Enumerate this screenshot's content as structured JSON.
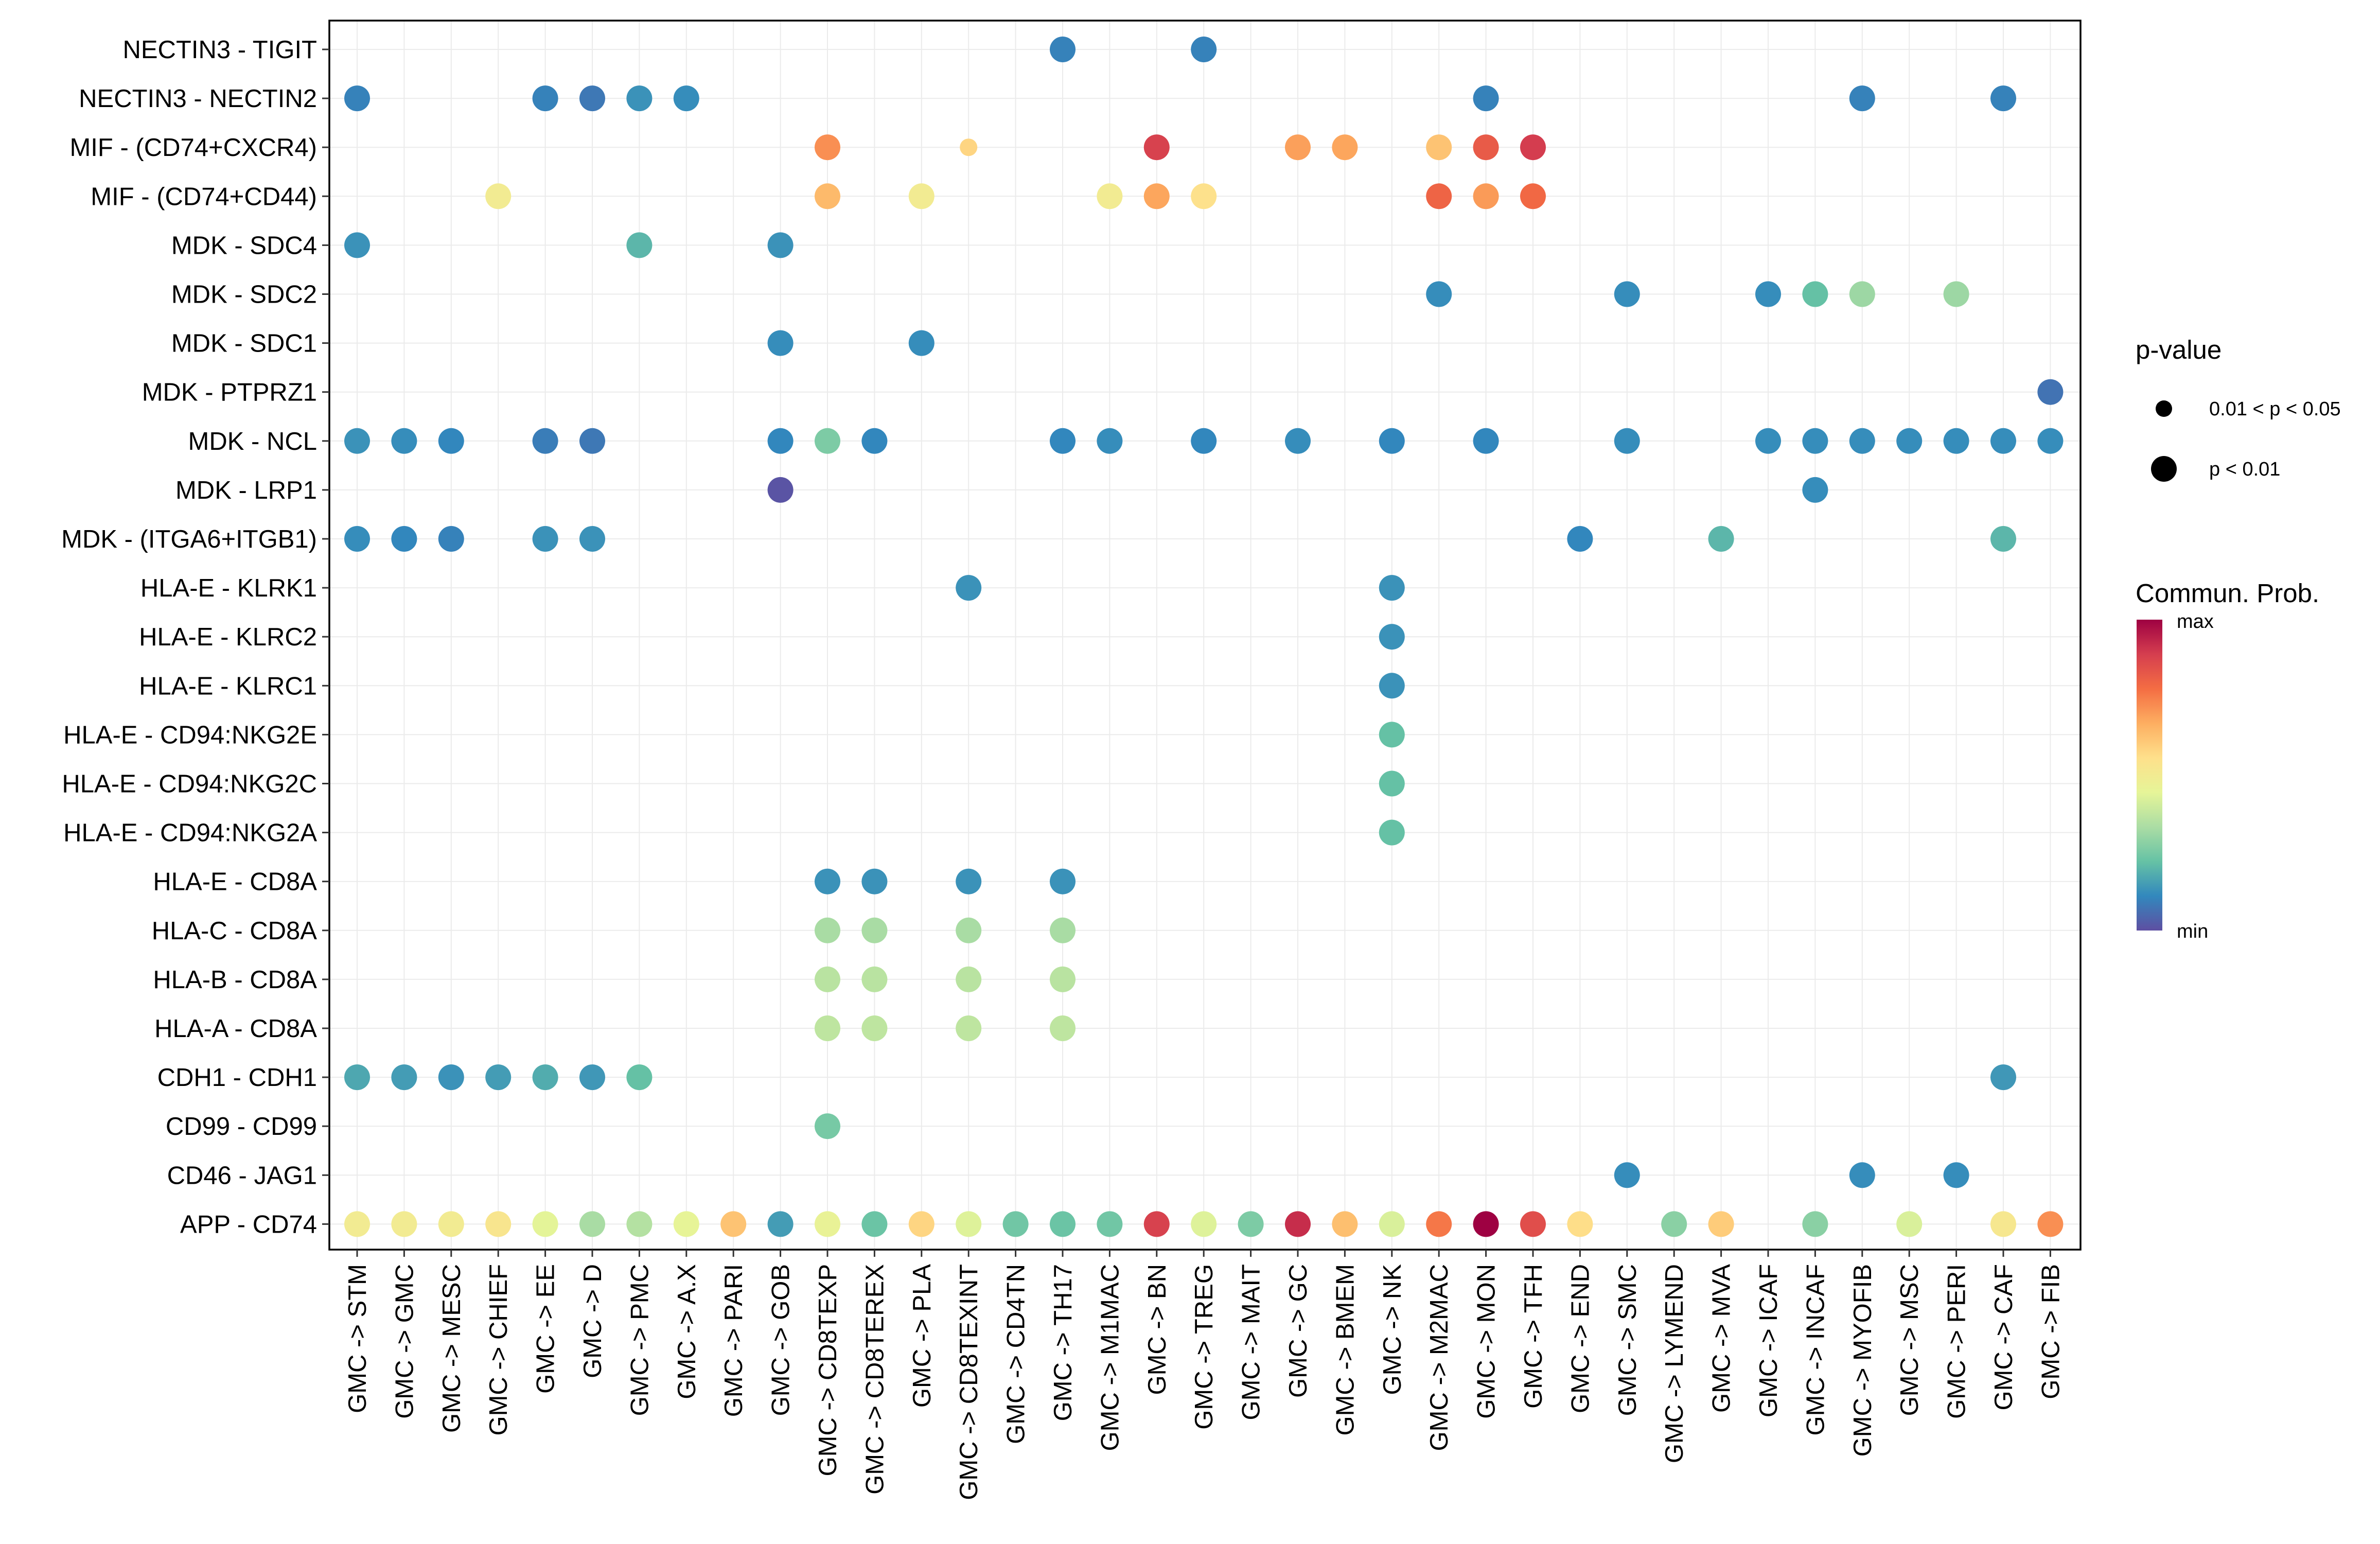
{
  "chart_data": {
    "type": "dot",
    "title": "",
    "xlabel": "",
    "ylabel": "",
    "color_scale": {
      "title": "Commun. Prob.",
      "max_label": "max",
      "min_label": "min",
      "range": [
        0,
        1
      ],
      "stops": [
        "#5e4fa2",
        "#3288bd",
        "#66c2a5",
        "#abdda4",
        "#e6f598",
        "#fee08b",
        "#fdae61",
        "#f46d43",
        "#d53e4f",
        "#9e0142"
      ]
    },
    "size_legend": {
      "title": "p-value",
      "entries": [
        {
          "label": "0.01 < p < 0.05",
          "size_class": "small"
        },
        {
          "label": "p < 0.01",
          "size_class": "large"
        }
      ]
    },
    "x_categories": [
      "GMC -> STM",
      "GMC -> GMC",
      "GMC -> MESC",
      "GMC -> CHIEF",
      "GMC -> EE",
      "GMC -> D",
      "GMC -> PMC",
      "GMC -> A.X",
      "GMC -> PARI",
      "GMC -> GOB",
      "GMC -> CD8TEXP",
      "GMC -> CD8TEREX",
      "GMC -> PLA",
      "GMC -> CD8TEXINT",
      "GMC -> CD4TN",
      "GMC -> TH17",
      "GMC -> M1MAC",
      "GMC -> BN",
      "GMC -> TREG",
      "GMC -> MAIT",
      "GMC -> GC",
      "GMC -> BMEM",
      "GMC -> NK",
      "GMC -> M2MAC",
      "GMC -> MON",
      "GMC -> TFH",
      "GMC -> END",
      "GMC -> SMC",
      "GMC -> LYMEND",
      "GMC -> MVA",
      "GMC -> ICAF",
      "GMC -> INCAF",
      "GMC -> MYOFIB",
      "GMC -> MSC",
      "GMC -> PERI",
      "GMC -> CAF",
      "GMC -> FIB"
    ],
    "y_categories": [
      "NECTIN3 - TIGIT",
      "NECTIN3 - NECTIN2",
      "MIF - (CD74+CXCR4)",
      "MIF - (CD74+CD44)",
      "MDK - SDC4",
      "MDK - SDC2",
      "MDK - SDC1",
      "MDK - PTPRZ1",
      "MDK - NCL",
      "MDK - LRP1",
      "MDK - (ITGA6+ITGB1)",
      "HLA-E - KLRK1",
      "HLA-E - KLRC2",
      "HLA-E - KLRC1",
      "HLA-E - CD94:NKG2E",
      "HLA-E - CD94:NKG2C",
      "HLA-E - CD94:NKG2A",
      "HLA-E - CD8A",
      "HLA-C - CD8A",
      "HLA-B - CD8A",
      "HLA-A - CD8A",
      "CDH1 - CDH1",
      "CD99 - CD99",
      "CD46 - JAG1",
      "APP - CD74"
    ],
    "points": [
      {
        "x": "GMC -> TH17",
        "y": "NECTIN3 - TIGIT",
        "prob": 0.1,
        "p": "p < 0.01"
      },
      {
        "x": "GMC -> TREG",
        "y": "NECTIN3 - TIGIT",
        "prob": 0.1,
        "p": "p < 0.01"
      },
      {
        "x": "GMC -> STM",
        "y": "NECTIN3 - NECTIN2",
        "prob": 0.1,
        "p": "p < 0.01"
      },
      {
        "x": "GMC -> EE",
        "y": "NECTIN3 - NECTIN2",
        "prob": 0.1,
        "p": "p < 0.01"
      },
      {
        "x": "GMC -> D",
        "y": "NECTIN3 - NECTIN2",
        "prob": 0.08,
        "p": "p < 0.01"
      },
      {
        "x": "GMC -> PMC",
        "y": "NECTIN3 - NECTIN2",
        "prob": 0.13,
        "p": "p < 0.01"
      },
      {
        "x": "GMC -> A.X",
        "y": "NECTIN3 - NECTIN2",
        "prob": 0.12,
        "p": "p < 0.01"
      },
      {
        "x": "GMC -> MON",
        "y": "NECTIN3 - NECTIN2",
        "prob": 0.1,
        "p": "p < 0.01"
      },
      {
        "x": "GMC -> MYOFIB",
        "y": "NECTIN3 - NECTIN2",
        "prob": 0.1,
        "p": "p < 0.01"
      },
      {
        "x": "GMC -> CAF",
        "y": "NECTIN3 - NECTIN2",
        "prob": 0.1,
        "p": "p < 0.01"
      },
      {
        "x": "GMC -> CD8TEXP",
        "y": "MIF - (CD74+CXCR4)",
        "prob": 0.72,
        "p": "p < 0.01"
      },
      {
        "x": "GMC -> CD8TEXINT",
        "y": "MIF - (CD74+CXCR4)",
        "prob": 0.58,
        "p": "0.01 < p < 0.05"
      },
      {
        "x": "GMC -> BN",
        "y": "MIF - (CD74+CXCR4)",
        "prob": 0.88,
        "p": "p < 0.01"
      },
      {
        "x": "GMC -> GC",
        "y": "MIF - (CD74+CXCR4)",
        "prob": 0.69,
        "p": "p < 0.01"
      },
      {
        "x": "GMC -> BMEM",
        "y": "MIF - (CD74+CXCR4)",
        "prob": 0.68,
        "p": "p < 0.01"
      },
      {
        "x": "GMC -> M2MAC",
        "y": "MIF - (CD74+CXCR4)",
        "prob": 0.62,
        "p": "p < 0.01"
      },
      {
        "x": "GMC -> MON",
        "y": "MIF - (CD74+CXCR4)",
        "prob": 0.82,
        "p": "p < 0.01"
      },
      {
        "x": "GMC -> TFH",
        "y": "MIF - (CD74+CXCR4)",
        "prob": 0.89,
        "p": "p < 0.01"
      },
      {
        "x": "GMC -> CHIEF",
        "y": "MIF - (CD74+CD44)",
        "prob": 0.5,
        "p": "p < 0.01"
      },
      {
        "x": "GMC -> CD8TEXP",
        "y": "MIF - (CD74+CD44)",
        "prob": 0.64,
        "p": "p < 0.01"
      },
      {
        "x": "GMC -> PLA",
        "y": "MIF - (CD74+CD44)",
        "prob": 0.5,
        "p": "p < 0.01"
      },
      {
        "x": "GMC -> M1MAC",
        "y": "MIF - (CD74+CD44)",
        "prob": 0.5,
        "p": "p < 0.01"
      },
      {
        "x": "GMC -> BN",
        "y": "MIF - (CD74+CD44)",
        "prob": 0.68,
        "p": "p < 0.01"
      },
      {
        "x": "GMC -> TREG",
        "y": "MIF - (CD74+CD44)",
        "prob": 0.55,
        "p": "p < 0.01"
      },
      {
        "x": "GMC -> M2MAC",
        "y": "MIF - (CD74+CD44)",
        "prob": 0.8,
        "p": "p < 0.01"
      },
      {
        "x": "GMC -> MON",
        "y": "MIF - (CD74+CD44)",
        "prob": 0.7,
        "p": "p < 0.01"
      },
      {
        "x": "GMC -> TFH",
        "y": "MIF - (CD74+CD44)",
        "prob": 0.79,
        "p": "p < 0.01"
      },
      {
        "x": "GMC -> STM",
        "y": "MDK - SDC4",
        "prob": 0.13,
        "p": "p < 0.01"
      },
      {
        "x": "GMC -> PMC",
        "y": "MDK - SDC4",
        "prob": 0.2,
        "p": "p < 0.01"
      },
      {
        "x": "GMC -> GOB",
        "y": "MDK - SDC4",
        "prob": 0.13,
        "p": "p < 0.01"
      },
      {
        "x": "GMC -> M2MAC",
        "y": "MDK - SDC2",
        "prob": 0.12,
        "p": "p < 0.01"
      },
      {
        "x": "GMC -> SMC",
        "y": "MDK - SDC2",
        "prob": 0.12,
        "p": "p < 0.01"
      },
      {
        "x": "GMC -> ICAF",
        "y": "MDK - SDC2",
        "prob": 0.12,
        "p": "p < 0.01"
      },
      {
        "x": "GMC -> INCAF",
        "y": "MDK - SDC2",
        "prob": 0.22,
        "p": "p < 0.01"
      },
      {
        "x": "GMC -> MYOFIB",
        "y": "MDK - SDC2",
        "prob": 0.31,
        "p": "p < 0.01"
      },
      {
        "x": "GMC -> PERI",
        "y": "MDK - SDC2",
        "prob": 0.31,
        "p": "p < 0.01"
      },
      {
        "x": "GMC -> GOB",
        "y": "MDK - SDC1",
        "prob": 0.12,
        "p": "p < 0.01"
      },
      {
        "x": "GMC -> PLA",
        "y": "MDK - SDC1",
        "prob": 0.12,
        "p": "p < 0.01"
      },
      {
        "x": "GMC -> FIB",
        "y": "MDK - PTPRZ1",
        "prob": 0.07,
        "p": "p < 0.01"
      },
      {
        "x": "GMC -> STM",
        "y": "MDK - NCL",
        "prob": 0.13,
        "p": "p < 0.01"
      },
      {
        "x": "GMC -> GMC",
        "y": "MDK - NCL",
        "prob": 0.12,
        "p": "p < 0.01"
      },
      {
        "x": "GMC -> MESC",
        "y": "MDK - NCL",
        "prob": 0.11,
        "p": "p < 0.01"
      },
      {
        "x": "GMC -> EE",
        "y": "MDK - NCL",
        "prob": 0.09,
        "p": "p < 0.01"
      },
      {
        "x": "GMC -> D",
        "y": "MDK - NCL",
        "prob": 0.08,
        "p": "p < 0.01"
      },
      {
        "x": "GMC -> GOB",
        "y": "MDK - NCL",
        "prob": 0.11,
        "p": "p < 0.01"
      },
      {
        "x": "GMC -> CD8TEXP",
        "y": "MDK - NCL",
        "prob": 0.26,
        "p": "p < 0.01"
      },
      {
        "x": "GMC -> CD8TEREX",
        "y": "MDK - NCL",
        "prob": 0.11,
        "p": "p < 0.01"
      },
      {
        "x": "GMC -> TH17",
        "y": "MDK - NCL",
        "prob": 0.11,
        "p": "p < 0.01"
      },
      {
        "x": "GMC -> M1MAC",
        "y": "MDK - NCL",
        "prob": 0.12,
        "p": "p < 0.01"
      },
      {
        "x": "GMC -> TREG",
        "y": "MDK - NCL",
        "prob": 0.11,
        "p": "p < 0.01"
      },
      {
        "x": "GMC -> GC",
        "y": "MDK - NCL",
        "prob": 0.12,
        "p": "p < 0.01"
      },
      {
        "x": "GMC -> NK",
        "y": "MDK - NCL",
        "prob": 0.11,
        "p": "p < 0.01"
      },
      {
        "x": "GMC -> MON",
        "y": "MDK - NCL",
        "prob": 0.11,
        "p": "p < 0.01"
      },
      {
        "x": "GMC -> SMC",
        "y": "MDK - NCL",
        "prob": 0.12,
        "p": "p < 0.01"
      },
      {
        "x": "GMC -> ICAF",
        "y": "MDK - NCL",
        "prob": 0.12,
        "p": "p < 0.01"
      },
      {
        "x": "GMC -> INCAF",
        "y": "MDK - NCL",
        "prob": 0.12,
        "p": "p < 0.01"
      },
      {
        "x": "GMC -> MYOFIB",
        "y": "MDK - NCL",
        "prob": 0.12,
        "p": "p < 0.01"
      },
      {
        "x": "GMC -> MSC",
        "y": "MDK - NCL",
        "prob": 0.12,
        "p": "p < 0.01"
      },
      {
        "x": "GMC -> PERI",
        "y": "MDK - NCL",
        "prob": 0.12,
        "p": "p < 0.01"
      },
      {
        "x": "GMC -> CAF",
        "y": "MDK - NCL",
        "prob": 0.12,
        "p": "p < 0.01"
      },
      {
        "x": "GMC -> FIB",
        "y": "MDK - NCL",
        "prob": 0.12,
        "p": "p < 0.01"
      },
      {
        "x": "GMC -> GOB",
        "y": "MDK - LRP1",
        "prob": 0.01,
        "p": "p < 0.01"
      },
      {
        "x": "GMC -> INCAF",
        "y": "MDK - LRP1",
        "prob": 0.12,
        "p": "p < 0.01"
      },
      {
        "x": "GMC -> STM",
        "y": "MDK - (ITGA6+ITGB1)",
        "prob": 0.12,
        "p": "p < 0.01"
      },
      {
        "x": "GMC -> GMC",
        "y": "MDK - (ITGA6+ITGB1)",
        "prob": 0.11,
        "p": "p < 0.01"
      },
      {
        "x": "GMC -> MESC",
        "y": "MDK - (ITGA6+ITGB1)",
        "prob": 0.1,
        "p": "p < 0.01"
      },
      {
        "x": "GMC -> EE",
        "y": "MDK - (ITGA6+ITGB1)",
        "prob": 0.13,
        "p": "p < 0.01"
      },
      {
        "x": "GMC -> D",
        "y": "MDK - (ITGA6+ITGB1)",
        "prob": 0.13,
        "p": "p < 0.01"
      },
      {
        "x": "GMC -> END",
        "y": "MDK - (ITGA6+ITGB1)",
        "prob": 0.11,
        "p": "p < 0.01"
      },
      {
        "x": "GMC -> MVA",
        "y": "MDK - (ITGA6+ITGB1)",
        "prob": 0.2,
        "p": "p < 0.01"
      },
      {
        "x": "GMC -> CAF",
        "y": "MDK - (ITGA6+ITGB1)",
        "prob": 0.2,
        "p": "p < 0.01"
      },
      {
        "x": "GMC -> CD8TEXINT",
        "y": "HLA-E - KLRK1",
        "prob": 0.13,
        "p": "p < 0.01"
      },
      {
        "x": "GMC -> NK",
        "y": "HLA-E - KLRK1",
        "prob": 0.13,
        "p": "p < 0.01"
      },
      {
        "x": "GMC -> NK",
        "y": "HLA-E - KLRC2",
        "prob": 0.13,
        "p": "p < 0.01"
      },
      {
        "x": "GMC -> NK",
        "y": "HLA-E - KLRC1",
        "prob": 0.13,
        "p": "p < 0.01"
      },
      {
        "x": "GMC -> NK",
        "y": "HLA-E - CD94:NKG2E",
        "prob": 0.22,
        "p": "p < 0.01"
      },
      {
        "x": "GMC -> NK",
        "y": "HLA-E - CD94:NKG2C",
        "prob": 0.22,
        "p": "p < 0.01"
      },
      {
        "x": "GMC -> NK",
        "y": "HLA-E - CD94:NKG2A",
        "prob": 0.22,
        "p": "p < 0.01"
      },
      {
        "x": "GMC -> CD8TEXP",
        "y": "HLA-E - CD8A",
        "prob": 0.13,
        "p": "p < 0.01"
      },
      {
        "x": "GMC -> CD8TEREX",
        "y": "HLA-E - CD8A",
        "prob": 0.13,
        "p": "p < 0.01"
      },
      {
        "x": "GMC -> CD8TEXINT",
        "y": "HLA-E - CD8A",
        "prob": 0.13,
        "p": "p < 0.01"
      },
      {
        "x": "GMC -> TH17",
        "y": "HLA-E - CD8A",
        "prob": 0.13,
        "p": "p < 0.01"
      },
      {
        "x": "GMC -> CD8TEXP",
        "y": "HLA-C - CD8A",
        "prob": 0.33,
        "p": "p < 0.01"
      },
      {
        "x": "GMC -> CD8TEREX",
        "y": "HLA-C - CD8A",
        "prob": 0.33,
        "p": "p < 0.01"
      },
      {
        "x": "GMC -> CD8TEXINT",
        "y": "HLA-C - CD8A",
        "prob": 0.33,
        "p": "p < 0.01"
      },
      {
        "x": "GMC -> TH17",
        "y": "HLA-C - CD8A",
        "prob": 0.33,
        "p": "p < 0.01"
      },
      {
        "x": "GMC -> CD8TEXP",
        "y": "HLA-B - CD8A",
        "prob": 0.36,
        "p": "p < 0.01"
      },
      {
        "x": "GMC -> CD8TEREX",
        "y": "HLA-B - CD8A",
        "prob": 0.36,
        "p": "p < 0.01"
      },
      {
        "x": "GMC -> CD8TEXINT",
        "y": "HLA-B - CD8A",
        "prob": 0.36,
        "p": "p < 0.01"
      },
      {
        "x": "GMC -> TH17",
        "y": "HLA-B - CD8A",
        "prob": 0.36,
        "p": "p < 0.01"
      },
      {
        "x": "GMC -> CD8TEXP",
        "y": "HLA-A - CD8A",
        "prob": 0.37,
        "p": "p < 0.01"
      },
      {
        "x": "GMC -> CD8TEREX",
        "y": "HLA-A - CD8A",
        "prob": 0.37,
        "p": "p < 0.01"
      },
      {
        "x": "GMC -> CD8TEXINT",
        "y": "HLA-A - CD8A",
        "prob": 0.37,
        "p": "p < 0.01"
      },
      {
        "x": "GMC -> TH17",
        "y": "HLA-A - CD8A",
        "prob": 0.37,
        "p": "p < 0.01"
      },
      {
        "x": "GMC -> STM",
        "y": "CDH1 - CDH1",
        "prob": 0.17,
        "p": "p < 0.01"
      },
      {
        "x": "GMC -> GMC",
        "y": "CDH1 - CDH1",
        "prob": 0.15,
        "p": "p < 0.01"
      },
      {
        "x": "GMC -> MESC",
        "y": "CDH1 - CDH1",
        "prob": 0.13,
        "p": "p < 0.01"
      },
      {
        "x": "GMC -> CHIEF",
        "y": "CDH1 - CDH1",
        "prob": 0.15,
        "p": "p < 0.01"
      },
      {
        "x": "GMC -> EE",
        "y": "CDH1 - CDH1",
        "prob": 0.18,
        "p": "p < 0.01"
      },
      {
        "x": "GMC -> D",
        "y": "CDH1 - CDH1",
        "prob": 0.14,
        "p": "p < 0.01"
      },
      {
        "x": "GMC -> PMC",
        "y": "CDH1 - CDH1",
        "prob": 0.22,
        "p": "p < 0.01"
      },
      {
        "x": "GMC -> CAF",
        "y": "CDH1 - CDH1",
        "prob": 0.14,
        "p": "p < 0.01"
      },
      {
        "x": "GMC -> CD8TEXP",
        "y": "CD99 - CD99",
        "prob": 0.25,
        "p": "p < 0.01"
      },
      {
        "x": "GMC -> SMC",
        "y": "CD46 - JAG1",
        "prob": 0.12,
        "p": "p < 0.01"
      },
      {
        "x": "GMC -> MYOFIB",
        "y": "CD46 - JAG1",
        "prob": 0.12,
        "p": "p < 0.01"
      },
      {
        "x": "GMC -> PERI",
        "y": "CD46 - JAG1",
        "prob": 0.12,
        "p": "p < 0.01"
      },
      {
        "x": "GMC -> STM",
        "y": "APP - CD74",
        "prob": 0.5,
        "p": "p < 0.01"
      },
      {
        "x": "GMC -> GMC",
        "y": "APP - CD74",
        "prob": 0.5,
        "p": "p < 0.01"
      },
      {
        "x": "GMC -> MESC",
        "y": "APP - CD74",
        "prob": 0.5,
        "p": "p < 0.01"
      },
      {
        "x": "GMC -> CHIEF",
        "y": "APP - CD74",
        "prob": 0.53,
        "p": "p < 0.01"
      },
      {
        "x": "GMC -> EE",
        "y": "APP - CD74",
        "prob": 0.44,
        "p": "p < 0.01"
      },
      {
        "x": "GMC -> D",
        "y": "APP - CD74",
        "prob": 0.33,
        "p": "p < 0.01"
      },
      {
        "x": "GMC -> PMC",
        "y": "APP - CD74",
        "prob": 0.35,
        "p": "p < 0.01"
      },
      {
        "x": "GMC -> A.X",
        "y": "APP - CD74",
        "prob": 0.45,
        "p": "p < 0.01"
      },
      {
        "x": "GMC -> PARI",
        "y": "APP - CD74",
        "prob": 0.62,
        "p": "p < 0.01"
      },
      {
        "x": "GMC -> GOB",
        "y": "APP - CD74",
        "prob": 0.15,
        "p": "p < 0.01"
      },
      {
        "x": "GMC -> CD8TEXP",
        "y": "APP - CD74",
        "prob": 0.46,
        "p": "p < 0.01"
      },
      {
        "x": "GMC -> CD8TEREX",
        "y": "APP - CD74",
        "prob": 0.23,
        "p": "p < 0.01"
      },
      {
        "x": "GMC -> PLA",
        "y": "APP - CD74",
        "prob": 0.58,
        "p": "p < 0.01"
      },
      {
        "x": "GMC -> CD8TEXINT",
        "y": "APP - CD74",
        "prob": 0.43,
        "p": "p < 0.01"
      },
      {
        "x": "GMC -> CD4TN",
        "y": "APP - CD74",
        "prob": 0.24,
        "p": "p < 0.01"
      },
      {
        "x": "GMC -> TH17",
        "y": "APP - CD74",
        "prob": 0.23,
        "p": "p < 0.01"
      },
      {
        "x": "GMC -> M1MAC",
        "y": "APP - CD74",
        "prob": 0.24,
        "p": "p < 0.01"
      },
      {
        "x": "GMC -> BN",
        "y": "APP - CD74",
        "prob": 0.88,
        "p": "p < 0.01"
      },
      {
        "x": "GMC -> TREG",
        "y": "APP - CD74",
        "prob": 0.43,
        "p": "p < 0.01"
      },
      {
        "x": "GMC -> MAIT",
        "y": "APP - CD74",
        "prob": 0.26,
        "p": "p < 0.01"
      },
      {
        "x": "GMC -> GC",
        "y": "APP - CD74",
        "prob": 0.92,
        "p": "p < 0.01"
      },
      {
        "x": "GMC -> BMEM",
        "y": "APP - CD74",
        "prob": 0.63,
        "p": "p < 0.01"
      },
      {
        "x": "GMC -> NK",
        "y": "APP - CD74",
        "prob": 0.42,
        "p": "p < 0.01"
      },
      {
        "x": "GMC -> M2MAC",
        "y": "APP - CD74",
        "prob": 0.76,
        "p": "p < 0.01"
      },
      {
        "x": "GMC -> MON",
        "y": "APP - CD74",
        "prob": 1.0,
        "p": "p < 0.01"
      },
      {
        "x": "GMC -> TFH",
        "y": "APP - CD74",
        "prob": 0.85,
        "p": "p < 0.01"
      },
      {
        "x": "GMC -> END",
        "y": "APP - CD74",
        "prob": 0.56,
        "p": "p < 0.01"
      },
      {
        "x": "GMC -> LYMEND",
        "y": "APP - CD74",
        "prob": 0.28,
        "p": "p < 0.01"
      },
      {
        "x": "GMC -> MVA",
        "y": "APP - CD74",
        "prob": 0.6,
        "p": "p < 0.01"
      },
      {
        "x": "GMC -> INCAF",
        "y": "APP - CD74",
        "prob": 0.28,
        "p": "p < 0.01"
      },
      {
        "x": "GMC -> MSC",
        "y": "APP - CD74",
        "prob": 0.42,
        "p": "p < 0.01"
      },
      {
        "x": "GMC -> CAF",
        "y": "APP - CD74",
        "prob": 0.52,
        "p": "p < 0.01"
      },
      {
        "x": "GMC -> FIB",
        "y": "APP - CD74",
        "prob": 0.72,
        "p": "p < 0.01"
      }
    ]
  }
}
